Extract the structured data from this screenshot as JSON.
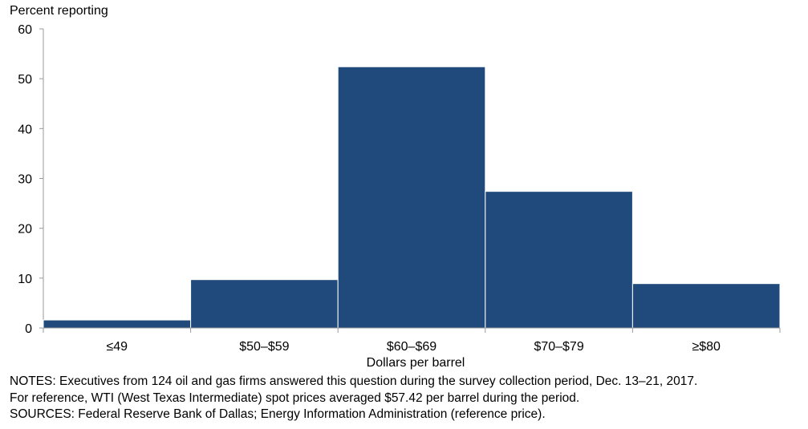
{
  "chart_data": {
    "type": "bar",
    "title": "",
    "ylabel": "Percent reporting",
    "xlabel": "Dollars per barrel",
    "categories": [
      "≤49",
      "$50–$59",
      "$60–$69",
      "$70–$79",
      "≥$80"
    ],
    "values": [
      1.6,
      9.7,
      52.4,
      27.4,
      8.9
    ],
    "ylim": [
      0,
      60
    ],
    "yticks": [
      0,
      10,
      20,
      30,
      40,
      50,
      60
    ],
    "grid": false,
    "bar_color": "#204a7c"
  },
  "notes": {
    "line1": "NOTES: Executives from 124 oil and gas firms answered this question during the survey collection period, Dec. 13–21, 2017.",
    "line2": "For reference, WTI (West Texas Intermediate) spot prices averaged $57.42 per barrel during the period.",
    "line3": "SOURCES: Federal Reserve Bank of Dallas; Energy Information Administration (reference price)."
  }
}
